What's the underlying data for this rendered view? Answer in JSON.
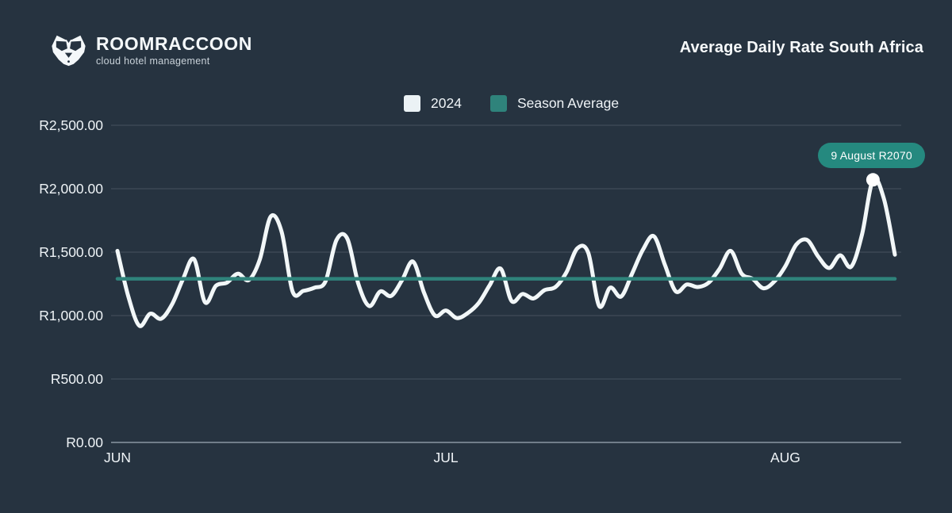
{
  "header": {
    "logo_text": "ROOMRACCOON",
    "logo_tagline": "cloud hotel management",
    "title": "Average Daily Rate South Africa"
  },
  "legend": [
    {
      "label": "2024",
      "color": "#EBF2F5"
    },
    {
      "label": "Season Average",
      "color": "#2F837B"
    }
  ],
  "tooltip": {
    "text": "9 August R2070"
  },
  "colors": {
    "background": "#263340",
    "grid": "#46525E",
    "axis_line": "#8A97A2",
    "series_line": "#F2F7F8",
    "average_line": "#2F837B",
    "tooltip_bg": "#25897F",
    "text": "#EFF4F7",
    "marker": "#FFFFFF"
  },
  "chart_data": {
    "type": "line",
    "title": "Average Daily Rate South Africa",
    "currency": "R",
    "ylim": [
      0,
      2500
    ],
    "grid": true,
    "legend_position": "top-center",
    "y_ticks": [
      {
        "label": "R0.00",
        "value": 0
      },
      {
        "label": "R500.00",
        "value": 500
      },
      {
        "label": "R1,000.00",
        "value": 1000
      },
      {
        "label": "R1,500.00",
        "value": 1500
      },
      {
        "label": "R2,000.00",
        "value": 2000
      },
      {
        "label": "R2,500.00",
        "value": 2500
      }
    ],
    "x_ticks": [
      {
        "label": "JUN",
        "index": 0
      },
      {
        "label": "JUL",
        "index": 30
      },
      {
        "label": "AUG",
        "index": 61
      }
    ],
    "x_start": "Jun 1",
    "x_end": "Aug 11",
    "series": [
      {
        "name": "2024",
        "values": [
          1510,
          1150,
          920,
          1015,
          975,
          1090,
          1290,
          1445,
          1105,
          1235,
          1260,
          1330,
          1280,
          1440,
          1780,
          1660,
          1190,
          1195,
          1220,
          1270,
          1595,
          1605,
          1250,
          1075,
          1190,
          1155,
          1280,
          1425,
          1180,
          1000,
          1040,
          980,
          1020,
          1100,
          1240,
          1370,
          1115,
          1170,
          1135,
          1200,
          1225,
          1340,
          1530,
          1495,
          1075,
          1220,
          1150,
          1330,
          1520,
          1625,
          1400,
          1190,
          1245,
          1225,
          1260,
          1370,
          1510,
          1330,
          1290,
          1215,
          1270,
          1390,
          1560,
          1595,
          1465,
          1375,
          1475,
          1385,
          1640,
          2070,
          1920,
          1480
        ]
      },
      {
        "name": "Season Average",
        "value": 1290
      }
    ],
    "highlight": {
      "index": 69,
      "date": "9 August",
      "value": 2070,
      "label": "9 August R2070"
    }
  }
}
